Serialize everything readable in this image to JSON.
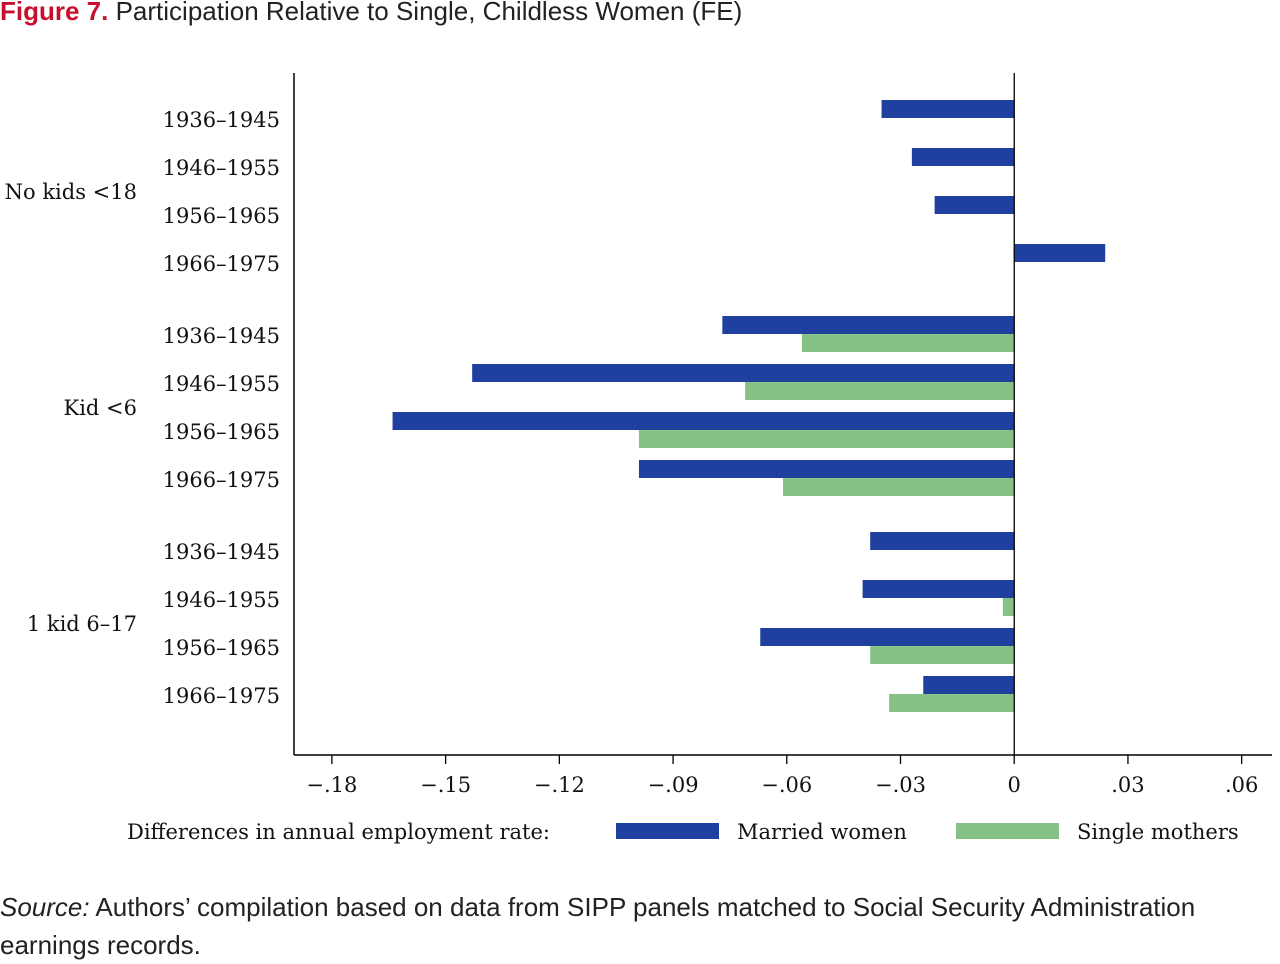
{
  "figure": {
    "number": "Figure 7.",
    "title": "Participation Relative to Single, Childless Women (FE)"
  },
  "source": {
    "lead": "Source:",
    "text": "Authors’ compilation based on data from SIPP panels matched to Social Security Administration earnings records."
  },
  "chart_data": {
    "type": "bar",
    "orientation": "horizontal",
    "title": "",
    "xlabel": "",
    "ylabel": "",
    "xlim": [
      -0.19,
      0.068
    ],
    "x_ticks": [
      -0.18,
      -0.15,
      -0.12,
      -0.09,
      -0.06,
      -0.03,
      0,
      0.03,
      0.06
    ],
    "x_tick_labels": [
      "−.18",
      "−.15",
      "−.12",
      "−.09",
      "−.06",
      "−.03",
      "0",
      ".03",
      ".06"
    ],
    "grid": false,
    "legend": {
      "position": "bottom",
      "caption": "Differences in annual employment rate:",
      "entries": [
        "Married women",
        "Single mothers"
      ]
    },
    "colors": {
      "married": "#2040a0",
      "single": "#86c186"
    },
    "groups": [
      {
        "label": "No kids <18",
        "categories": [
          "1936–1945",
          "1946–1955",
          "1956–1965",
          "1966–1975"
        ],
        "married": [
          -0.035,
          -0.027,
          -0.021,
          0.024
        ],
        "single": [
          null,
          null,
          null,
          null
        ]
      },
      {
        "label": "Kid <6",
        "categories": [
          "1936–1945",
          "1946–1955",
          "1956–1965",
          "1966–1975"
        ],
        "married": [
          -0.077,
          -0.143,
          -0.164,
          -0.099
        ],
        "single": [
          -0.056,
          -0.071,
          -0.099,
          -0.061
        ]
      },
      {
        "label": "1 kid 6–17",
        "categories": [
          "1936–1945",
          "1946–1955",
          "1956–1965",
          "1966–1975"
        ],
        "married": [
          -0.038,
          -0.04,
          -0.067,
          -0.024
        ],
        "single": [
          null,
          -0.003,
          -0.038,
          -0.033
        ]
      }
    ]
  }
}
